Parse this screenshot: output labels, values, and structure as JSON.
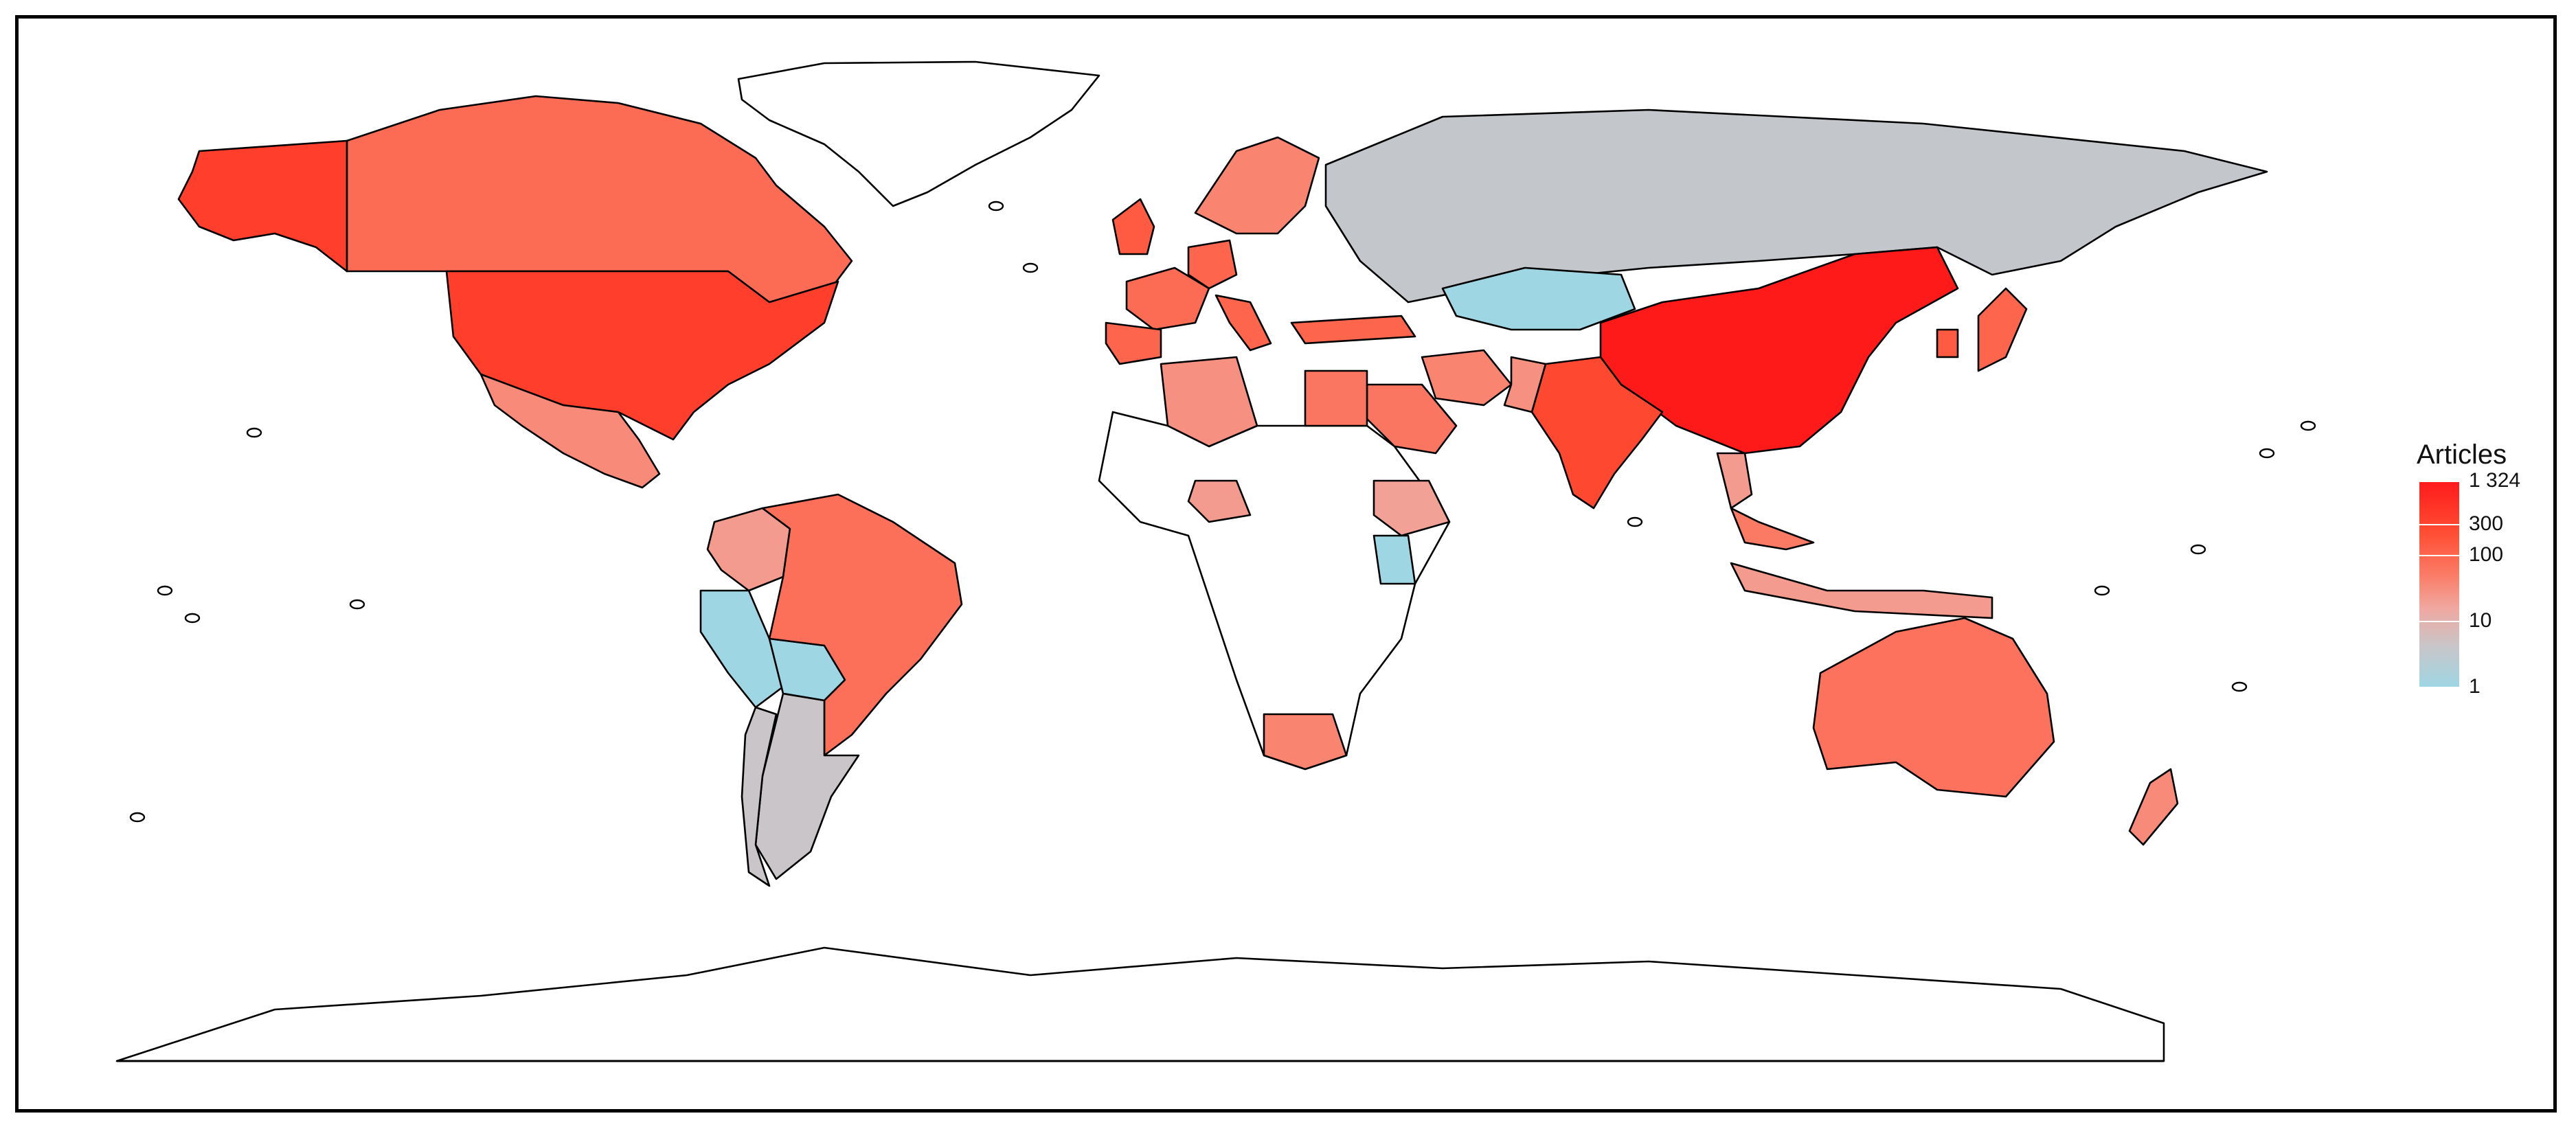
{
  "legend": {
    "title": "Articles",
    "scale": "log",
    "ticks": [
      {
        "value": 1324,
        "label": "1 324",
        "pos": 0.0
      },
      {
        "value": 300,
        "label": "300",
        "pos": 0.21
      },
      {
        "value": 100,
        "label": "100",
        "pos": 0.36
      },
      {
        "value": 10,
        "label": "10",
        "pos": 0.68
      },
      {
        "value": 1,
        "label": "1",
        "pos": 1.0
      }
    ],
    "colors": {
      "max": "#ff1a1a",
      "high": "#ff4d33",
      "mid": "#fb7a64",
      "low": "#f0a8a0",
      "grey": "#c9c5c8",
      "min": "#9fd6e3",
      "none": "#ffffff"
    }
  },
  "chart_data": {
    "type": "choropleth",
    "metric": "Articles",
    "scale": "log",
    "range": [
      1,
      1324
    ],
    "regions": [
      {
        "region": "China",
        "value": 1324
      },
      {
        "region": "United States",
        "value": 450
      },
      {
        "region": "India",
        "value": 350
      },
      {
        "region": "Greenland",
        "value": 0
      },
      {
        "region": "Canada",
        "value": 120
      },
      {
        "region": "Mexico",
        "value": 50
      },
      {
        "region": "Brazil",
        "value": 110
      },
      {
        "region": "Colombia",
        "value": 30
      },
      {
        "region": "Peru",
        "value": 1
      },
      {
        "region": "Bolivia",
        "value": 1
      },
      {
        "region": "Argentina",
        "value": 5
      },
      {
        "region": "Chile",
        "value": 5
      },
      {
        "region": "Russia",
        "value": 4
      },
      {
        "region": "Kazakhstan",
        "value": 1
      },
      {
        "region": "Australia",
        "value": 100
      },
      {
        "region": "South Africa",
        "value": 60
      },
      {
        "region": "Algeria",
        "value": 40
      },
      {
        "region": "Egypt",
        "value": 90
      },
      {
        "region": "Saudi Arabia",
        "value": 90
      },
      {
        "region": "Ethiopia",
        "value": 25
      },
      {
        "region": "Kenya",
        "value": 1
      },
      {
        "region": "Indonesia",
        "value": 30
      },
      {
        "region": "Japan",
        "value": 150
      },
      {
        "region": "South Korea",
        "value": 200
      },
      {
        "region": "Iran",
        "value": 60
      },
      {
        "region": "Pakistan",
        "value": 40
      },
      {
        "region": "Turkey",
        "value": 150
      },
      {
        "region": "Spain",
        "value": 150
      },
      {
        "region": "France",
        "value": 120
      },
      {
        "region": "Germany",
        "value": 150
      },
      {
        "region": "United Kingdom",
        "value": 200
      },
      {
        "region": "Italy",
        "value": 150
      },
      {
        "region": "Scandinavia",
        "value": 60
      },
      {
        "region": "Nigeria",
        "value": 30
      },
      {
        "region": "Thailand",
        "value": 30
      },
      {
        "region": "Malaysia",
        "value": 80
      },
      {
        "region": "New Zealand",
        "value": 50
      }
    ]
  }
}
